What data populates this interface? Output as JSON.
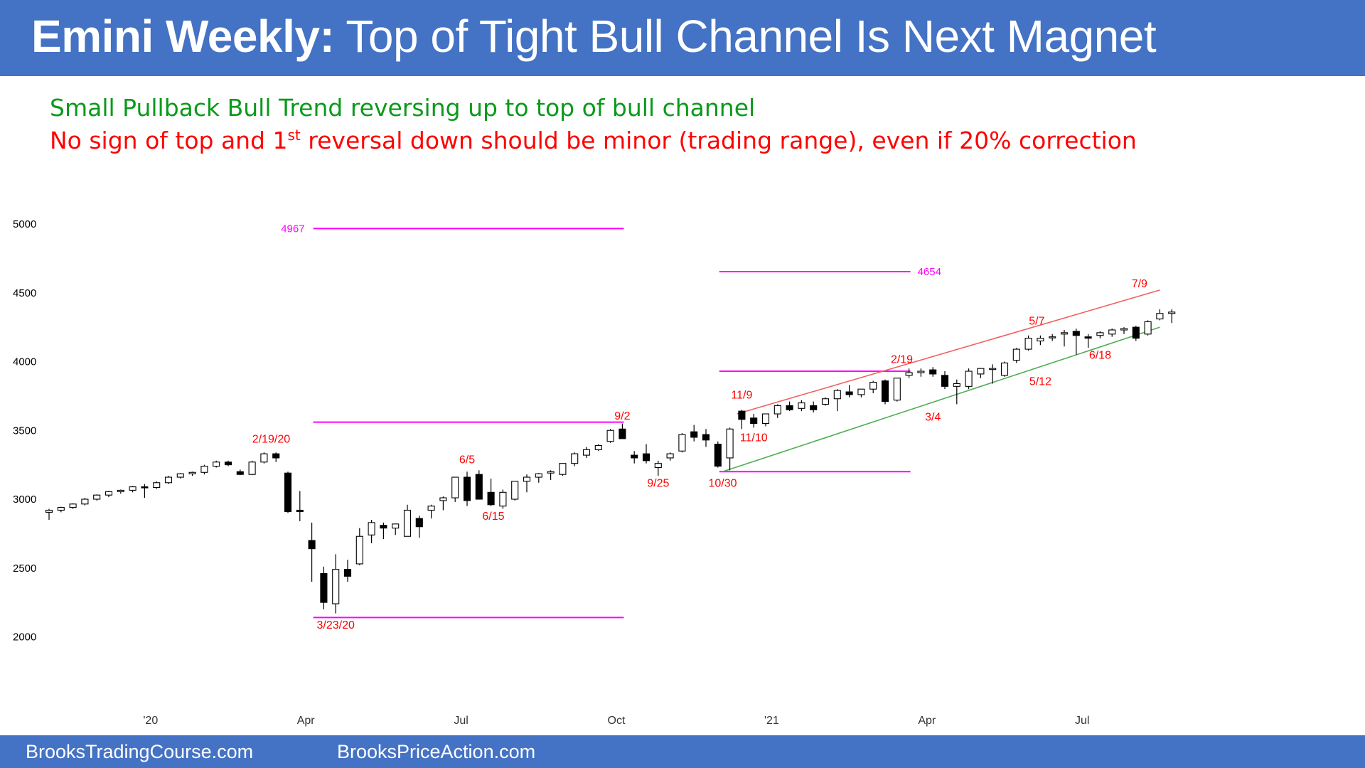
{
  "header": {
    "title_bold": "Emini Weekly:",
    "title_rest": " Top of Tight Bull Channel Is Next Magnet"
  },
  "subtitle": {
    "line1": "Small Pullback Bull Trend reversing up to top of bull channel",
    "line2_a": "No sign of top and 1",
    "line2_sup": "st",
    "line2_b": " reversal down should be minor (trading range), even if 20% correction"
  },
  "footer": {
    "left": "BrooksTradingCourse.com",
    "right": "BrooksPriceAction.com"
  },
  "colors": {
    "header": "#4472c4",
    "green_text": "#0a9a1a",
    "red_text": "#ff0000",
    "magenta": "#ff00ff",
    "channel_red": "#f06060",
    "channel_green": "#4caf50"
  },
  "chart_data": {
    "type": "candlestick",
    "title": "Emini Weekly",
    "x_start": "2019-11-04",
    "ylim": [
      1750,
      5250
    ],
    "yticks": [
      2000,
      2500,
      3000,
      3500,
      4000,
      4500,
      5000
    ],
    "xticks": [
      {
        "label": "'20",
        "week": 8.5
      },
      {
        "label": "Apr",
        "week": 21.5
      },
      {
        "label": "Jul",
        "week": 34.5
      },
      {
        "label": "Oct",
        "week": 47.5
      },
      {
        "label": "'21",
        "week": 60.5
      },
      {
        "label": "Apr",
        "week": 73.5
      },
      {
        "label": "Jul",
        "week": 86.5
      }
    ],
    "candles": [
      [
        2905,
        2930,
        2850,
        2920
      ],
      [
        2920,
        2945,
        2905,
        2940
      ],
      [
        2940,
        2970,
        2930,
        2965
      ],
      [
        2965,
        3010,
        2955,
        3000
      ],
      [
        3000,
        3035,
        2990,
        3030
      ],
      [
        3030,
        3060,
        3015,
        3055
      ],
      [
        3055,
        3070,
        3040,
        3065
      ],
      [
        3065,
        3095,
        3050,
        3090
      ],
      [
        3090,
        3110,
        3010,
        3085
      ],
      [
        3085,
        3130,
        3075,
        3120
      ],
      [
        3120,
        3170,
        3110,
        3160
      ],
      [
        3160,
        3190,
        3150,
        3185
      ],
      [
        3185,
        3200,
        3170,
        3195
      ],
      [
        3195,
        3250,
        3180,
        3240
      ],
      [
        3240,
        3280,
        3230,
        3270
      ],
      [
        3270,
        3280,
        3240,
        3250
      ],
      [
        3200,
        3215,
        3175,
        3180
      ],
      [
        3180,
        3280,
        3175,
        3270
      ],
      [
        3270,
        3340,
        3260,
        3330
      ],
      [
        3330,
        3340,
        3270,
        3300
      ],
      [
        3190,
        3200,
        2900,
        2910
      ],
      [
        2920,
        3060,
        2840,
        2910
      ],
      [
        2700,
        2830,
        2400,
        2640
      ],
      [
        2460,
        2510,
        2200,
        2250
      ],
      [
        2240,
        2600,
        2170,
        2490
      ],
      [
        2490,
        2560,
        2400,
        2440
      ],
      [
        2530,
        2790,
        2520,
        2730
      ],
      [
        2740,
        2850,
        2680,
        2830
      ],
      [
        2810,
        2830,
        2710,
        2790
      ],
      [
        2790,
        2820,
        2740,
        2820
      ],
      [
        2730,
        2960,
        2730,
        2920
      ],
      [
        2860,
        2880,
        2720,
        2800
      ],
      [
        2920,
        2960,
        2860,
        2950
      ],
      [
        2990,
        3020,
        2920,
        3010
      ],
      [
        3010,
        3160,
        2980,
        3160
      ],
      [
        3160,
        3200,
        2950,
        2990
      ],
      [
        3180,
        3210,
        3000,
        3000
      ],
      [
        3050,
        3150,
        2950,
        2960
      ],
      [
        2950,
        3070,
        2930,
        3050
      ],
      [
        3000,
        3130,
        2990,
        3130
      ],
      [
        3130,
        3180,
        3050,
        3160
      ],
      [
        3160,
        3190,
        3120,
        3185
      ],
      [
        3190,
        3210,
        3140,
        3200
      ],
      [
        3180,
        3260,
        3170,
        3260
      ],
      [
        3260,
        3340,
        3240,
        3330
      ],
      [
        3320,
        3380,
        3300,
        3360
      ],
      [
        3360,
        3400,
        3350,
        3390
      ],
      [
        3420,
        3510,
        3410,
        3500
      ],
      [
        3510,
        3550,
        3440,
        3440
      ],
      [
        3320,
        3350,
        3260,
        3300
      ],
      [
        3330,
        3400,
        3260,
        3280
      ],
      [
        3230,
        3280,
        3170,
        3260
      ],
      [
        3300,
        3340,
        3280,
        3330
      ],
      [
        3350,
        3480,
        3340,
        3470
      ],
      [
        3490,
        3540,
        3420,
        3450
      ],
      [
        3470,
        3510,
        3380,
        3430
      ],
      [
        3400,
        3420,
        3230,
        3240
      ],
      [
        3300,
        3520,
        3210,
        3510
      ],
      [
        3640,
        3650,
        3510,
        3580
      ],
      [
        3590,
        3620,
        3520,
        3550
      ],
      [
        3550,
        3620,
        3530,
        3620
      ],
      [
        3620,
        3690,
        3590,
        3680
      ],
      [
        3680,
        3710,
        3640,
        3650
      ],
      [
        3660,
        3720,
        3640,
        3700
      ],
      [
        3680,
        3710,
        3630,
        3650
      ],
      [
        3690,
        3740,
        3680,
        3730
      ],
      [
        3730,
        3800,
        3640,
        3790
      ],
      [
        3780,
        3830,
        3740,
        3760
      ],
      [
        3760,
        3800,
        3740,
        3800
      ],
      [
        3800,
        3860,
        3770,
        3850
      ],
      [
        3860,
        3870,
        3690,
        3710
      ],
      [
        3720,
        3880,
        3710,
        3880
      ],
      [
        3900,
        3950,
        3880,
        3920
      ],
      [
        3920,
        3950,
        3890,
        3930
      ],
      [
        3940,
        3960,
        3890,
        3910
      ],
      [
        3900,
        3930,
        3800,
        3820
      ],
      [
        3820,
        3870,
        3690,
        3840
      ],
      [
        3820,
        3950,
        3800,
        3930
      ],
      [
        3910,
        3950,
        3880,
        3950
      ],
      [
        3950,
        3980,
        3840,
        3950
      ],
      [
        3900,
        4000,
        3890,
        3990
      ],
      [
        4010,
        4100,
        3990,
        4090
      ],
      [
        4090,
        4190,
        4080,
        4170
      ],
      [
        4150,
        4190,
        4120,
        4170
      ],
      [
        4180,
        4200,
        4150,
        4180
      ],
      [
        4200,
        4230,
        4110,
        4210
      ],
      [
        4220,
        4240,
        4050,
        4190
      ],
      [
        4180,
        4200,
        4100,
        4170
      ],
      [
        4190,
        4220,
        4170,
        4210
      ],
      [
        4200,
        4240,
        4180,
        4230
      ],
      [
        4230,
        4250,
        4200,
        4240
      ],
      [
        4250,
        4260,
        4150,
        4170
      ],
      [
        4200,
        4300,
        4190,
        4290
      ],
      [
        4310,
        4380,
        4300,
        4350
      ],
      [
        4350,
        4380,
        4280,
        4360
      ]
    ],
    "hlines": [
      {
        "label": "4967",
        "y": 4967,
        "from": 22,
        "to": 48
      },
      {
        "label": "4654",
        "y": 4654,
        "from": 56,
        "to": 72
      },
      {
        "label": "",
        "y": 3560,
        "from": 22,
        "to": 48
      },
      {
        "label": "",
        "y": 2140,
        "from": 22,
        "to": 48
      },
      {
        "label": "",
        "y": 3930,
        "from": 56,
        "to": 72
      },
      {
        "label": "",
        "y": 3200,
        "from": 56,
        "to": 72
      }
    ],
    "channel_lines": [
      {
        "color": "red",
        "x1": 57.6,
        "y1": 3620,
        "x2": 93.0,
        "y2": 4520
      },
      {
        "color": "green",
        "x1": 56.4,
        "y1": 3200,
        "x2": 93.0,
        "y2": 4250
      }
    ],
    "annotations": [
      {
        "text": "2/19/20",
        "week": 18.6,
        "y": 3410
      },
      {
        "text": "3/23/20",
        "week": 24.0,
        "y": 2060
      },
      {
        "text": "6/5",
        "week": 35.0,
        "y": 3260
      },
      {
        "text": "6/15",
        "week": 37.2,
        "y": 2850
      },
      {
        "text": "9/2",
        "week": 48.0,
        "y": 3580
      },
      {
        "text": "9/25",
        "week": 51.0,
        "y": 3090
      },
      {
        "text": "10/30",
        "week": 56.4,
        "y": 3090
      },
      {
        "text": "11/9",
        "week": 58.0,
        "y": 3730
      },
      {
        "text": "11/10",
        "week": 59.0,
        "y": 3420
      },
      {
        "text": "2/19",
        "week": 71.4,
        "y": 3990
      },
      {
        "text": "3/4",
        "week": 74.0,
        "y": 3570
      },
      {
        "text": "5/12",
        "week": 83.0,
        "y": 3830
      },
      {
        "text": "5/7",
        "week": 82.7,
        "y": 4270
      },
      {
        "text": "6/18",
        "week": 88.0,
        "y": 4020
      },
      {
        "text": "7/9",
        "week": 91.3,
        "y": 4540
      }
    ]
  }
}
